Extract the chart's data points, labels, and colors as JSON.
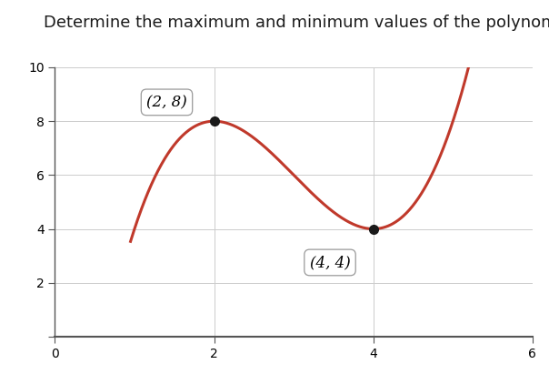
{
  "title": "Determine the maximum and minimum values of the polynomial.",
  "xlim": [
    0,
    6
  ],
  "ylim": [
    0,
    10
  ],
  "xticks": [
    0,
    2,
    4,
    6
  ],
  "yticks": [
    2,
    4,
    6,
    8,
    10
  ],
  "ytick_top": 10,
  "curve_color": "#c0392b",
  "curve_linewidth": 2.2,
  "point_max": [
    2,
    8
  ],
  "point_min": [
    4,
    4
  ],
  "label_max": "(2, 8)",
  "label_min": "(4, 4)",
  "point_color": "#1a1a1a",
  "point_size": 7,
  "background_color": "#ffffff",
  "grid_color": "#cccccc",
  "title_fontsize": 13,
  "tick_fontsize": 10,
  "label_fontsize": 12,
  "poly_a": 1,
  "poly_b": -9,
  "poly_c": 24,
  "poly_d": -12,
  "x_start": 0.95,
  "x_end": 5.58,
  "spine_color": "#555555"
}
